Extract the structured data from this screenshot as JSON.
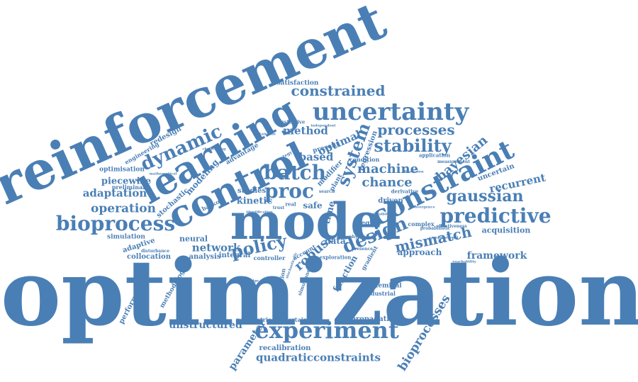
{
  "cloud": {
    "color": "#4a7fb5",
    "words": [
      {
        "text": "optimization"
      },
      {
        "text": "reinforcement"
      },
      {
        "text": "model"
      },
      {
        "text": "learning"
      },
      {
        "text": "control"
      },
      {
        "text": "uncertainty"
      },
      {
        "text": "constraint"
      },
      {
        "text": "experiment"
      },
      {
        "text": "predictive"
      },
      {
        "text": "bioprocess"
      },
      {
        "text": "dynamic"
      },
      {
        "text": "batch"
      },
      {
        "text": "proc"
      },
      {
        "text": "system"
      },
      {
        "text": "design"
      },
      {
        "text": "stability"
      },
      {
        "text": "processes"
      },
      {
        "text": "constrained"
      },
      {
        "text": "gaussian"
      },
      {
        "text": "policy"
      },
      {
        "text": "mismatch"
      },
      {
        "text": "machine"
      },
      {
        "text": "chance"
      },
      {
        "text": "bayesian"
      },
      {
        "text": "recurrent"
      },
      {
        "text": "operation"
      },
      {
        "text": "adaptation"
      },
      {
        "text": "piecewise"
      },
      {
        "text": "network"
      },
      {
        "text": "framework"
      },
      {
        "text": "quadraticconstraints"
      },
      {
        "text": "bioprocesses"
      },
      {
        "text": "unstructured"
      },
      {
        "text": "parameter"
      },
      {
        "text": "robust"
      },
      {
        "text": "method"
      },
      {
        "text": "optimal"
      },
      {
        "text": "based"
      },
      {
        "text": "kinetic"
      },
      {
        "text": "acquisition"
      },
      {
        "text": "approach"
      },
      {
        "text": "time"
      },
      {
        "text": "function"
      },
      {
        "text": "data"
      },
      {
        "text": "safe"
      },
      {
        "text": "modeling"
      },
      {
        "text": "redesign"
      },
      {
        "text": "adaptive"
      },
      {
        "text": "neural"
      },
      {
        "text": "propagation"
      },
      {
        "text": "recalibration"
      },
      {
        "text": "uncertain"
      },
      {
        "text": "regression"
      },
      {
        "text": "modifier"
      },
      {
        "text": "studies"
      },
      {
        "text": "driven"
      },
      {
        "text": "integral"
      },
      {
        "text": "collocation"
      },
      {
        "text": "analysis"
      },
      {
        "text": "performance"
      },
      {
        "text": "methodology"
      },
      {
        "text": "simulation"
      },
      {
        "text": "optimisation"
      },
      {
        "text": "stochastic"
      },
      {
        "text": "preliminary"
      },
      {
        "text": "engineering"
      },
      {
        "text": "satisfaction"
      },
      {
        "text": "illustrative"
      },
      {
        "text": "present"
      },
      {
        "text": "plant"
      },
      {
        "text": "advantage"
      },
      {
        "text": "region"
      },
      {
        "text": "complex"
      },
      {
        "text": "chemical"
      },
      {
        "text": "industrial"
      },
      {
        "text": "parametric"
      },
      {
        "text": "uncertainties"
      },
      {
        "text": "controller"
      },
      {
        "text": "reduction"
      },
      {
        "text": "account"
      },
      {
        "text": "simultaneous"
      },
      {
        "text": "gradient"
      },
      {
        "text": "exploration"
      },
      {
        "text": "condition"
      },
      {
        "text": "derivative"
      },
      {
        "text": "application"
      },
      {
        "text": "measurement"
      },
      {
        "text": "backoff"
      },
      {
        "text": "case"
      },
      {
        "text": "disturbance"
      },
      {
        "text": "real"
      },
      {
        "text": "effectiveness"
      },
      {
        "text": "probabilistic"
      },
      {
        "text": "search"
      },
      {
        "text": "trust"
      },
      {
        "text": "physic"
      },
      {
        "text": "presence"
      },
      {
        "text": "sustainable"
      },
      {
        "text": "strategy"
      },
      {
        "text": "independent"
      },
      {
        "text": "challenging"
      },
      {
        "text": "mathematical"
      },
      {
        "text": "knowledge"
      },
      {
        "text": "hybrid"
      },
      {
        "text": "stochastically"
      },
      {
        "text": "dimension"
      },
      {
        "text": "convergence"
      },
      {
        "text": "computational"
      },
      {
        "text": "reachability"
      },
      {
        "text": "identification"
      },
      {
        "text": "feasibility"
      }
    ]
  }
}
